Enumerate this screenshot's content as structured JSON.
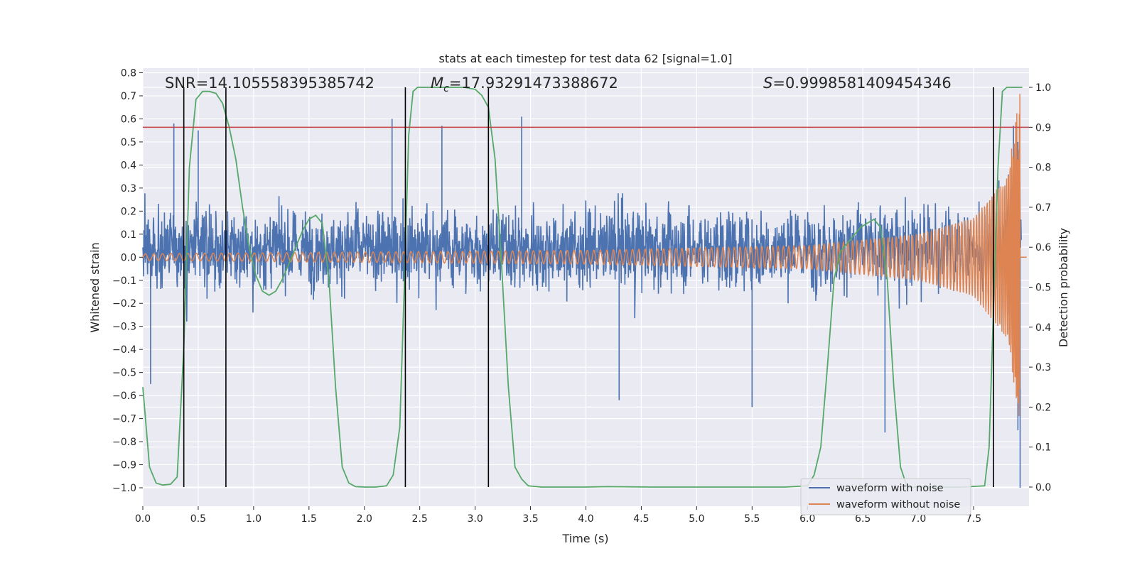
{
  "chart_data": {
    "type": "line",
    "title": "stats at each timestep for test data 62 [signal=1.0]",
    "xlabel": "Time (s)",
    "ylabel": "Whitened strain",
    "ylabel_right": "Detection probability",
    "xlim": [
      0,
      8.0
    ],
    "ylim": [
      -1.08,
      0.82
    ],
    "ylim_right": [
      -0.048,
      1.048
    ],
    "xticks": [
      "0.0",
      "0.5",
      "1.0",
      "1.5",
      "2.0",
      "2.5",
      "3.0",
      "3.5",
      "4.0",
      "4.5",
      "5.0",
      "5.5",
      "6.0",
      "6.5",
      "7.0",
      "7.5"
    ],
    "xtick_values": [
      0,
      0.5,
      1,
      1.5,
      2,
      2.5,
      3,
      3.5,
      4,
      4.5,
      5,
      5.5,
      6,
      6.5,
      7,
      7.5
    ],
    "yticks": [
      "0.8",
      "0.7",
      "0.6",
      "0.5",
      "0.4",
      "0.3",
      "0.2",
      "0.1",
      "0.0",
      "−0.1",
      "−0.2",
      "−0.3",
      "−0.4",
      "−0.5",
      "−0.6",
      "−0.7",
      "−0.8",
      "−0.9",
      "−1.0"
    ],
    "ytick_values": [
      0.8,
      0.7,
      0.6,
      0.5,
      0.4,
      0.3,
      0.2,
      0.1,
      0.0,
      -0.1,
      -0.2,
      -0.3,
      -0.4,
      -0.5,
      -0.6,
      -0.7,
      -0.8,
      -0.9,
      -1.0
    ],
    "yticks_right": [
      "1.0",
      "0.9",
      "0.8",
      "0.7",
      "0.6",
      "0.5",
      "0.4",
      "0.3",
      "0.2",
      "0.1",
      "0.0"
    ],
    "ytick_values_right": [
      1.0,
      0.9,
      0.8,
      0.7,
      0.6,
      0.5,
      0.4,
      0.3,
      0.2,
      0.1,
      0.0
    ],
    "grid": true,
    "legend_position": "bottom-right",
    "annotations": {
      "snr": "SNR=14.105558395385742",
      "mc_symbol": "M",
      "mc_subscript": "c",
      "mc_value": "=17.93291473388672",
      "s_symbol": "S",
      "s_value": "=0.9998581409454346"
    },
    "threshold_line": {
      "axis": "right",
      "value": 0.9,
      "color": "#c44e52"
    },
    "vertical_markers": [
      0.37,
      0.75,
      2.37,
      3.12,
      7.68
    ],
    "series": [
      {
        "name": "waveform with noise",
        "color": "#4c72b0",
        "axis": "left",
        "description": "noisy whitened strain, amplitude mostly within -0.4 to 0.45, sampled densely over 0 to 7.93 s",
        "x_range": [
          0,
          7.93
        ],
        "typical_range": [
          -0.42,
          0.45
        ],
        "extreme_values": [
          {
            "x": 0.07,
            "y": -0.55
          },
          {
            "x": 0.28,
            "y": 0.58
          },
          {
            "x": 0.5,
            "y": 0.55
          },
          {
            "x": 2.25,
            "y": 0.6
          },
          {
            "x": 2.7,
            "y": 0.57
          },
          {
            "x": 3.42,
            "y": 0.61
          },
          {
            "x": 4.3,
            "y": -0.62
          },
          {
            "x": 5.5,
            "y": -0.65
          },
          {
            "x": 6.7,
            "y": -0.76
          },
          {
            "x": 7.86,
            "y": 0.57
          },
          {
            "x": 7.9,
            "y": -0.75
          },
          {
            "x": 7.92,
            "y": -1.0
          }
        ]
      },
      {
        "name": "waveform without noise",
        "color": "#dd8452",
        "axis": "left",
        "description": "chirp waveform, amplitude growing from about 0.015 at t=0 to beyond 0.7 near merger at 7.92 s, then zero",
        "x_range": [
          0,
          8.0
        ],
        "merger_time": 7.92,
        "amplitude_points": [
          {
            "x": 0.0,
            "y": 0.015
          },
          {
            "x": 4.0,
            "y": 0.03
          },
          {
            "x": 6.0,
            "y": 0.05
          },
          {
            "x": 7.0,
            "y": 0.1
          },
          {
            "x": 7.5,
            "y": 0.17
          },
          {
            "x": 7.8,
            "y": 0.35
          },
          {
            "x": 7.92,
            "y": 0.72
          }
        ]
      },
      {
        "name": "detection probability",
        "color": "#55a868",
        "axis": "right",
        "x": [
          0.0,
          0.06,
          0.12,
          0.18,
          0.25,
          0.31,
          0.37,
          0.42,
          0.48,
          0.54,
          0.6,
          0.66,
          0.72,
          0.78,
          0.84,
          0.9,
          0.96,
          1.02,
          1.08,
          1.14,
          1.2,
          1.26,
          1.32,
          1.38,
          1.44,
          1.5,
          1.56,
          1.62,
          1.68,
          1.74,
          1.8,
          1.86,
          1.92,
          2.0,
          2.1,
          2.2,
          2.26,
          2.32,
          2.36,
          2.4,
          2.44,
          2.48,
          2.54,
          2.6,
          2.7,
          2.8,
          2.9,
          3.0,
          3.06,
          3.12,
          3.18,
          3.24,
          3.3,
          3.36,
          3.42,
          3.48,
          3.6,
          3.8,
          4.0,
          4.2,
          4.6,
          5.0,
          5.4,
          5.8,
          6.0,
          6.06,
          6.12,
          6.18,
          6.24,
          6.3,
          6.36,
          6.42,
          6.48,
          6.54,
          6.6,
          6.66,
          6.72,
          6.78,
          6.84,
          6.9,
          7.0,
          7.2,
          7.4,
          7.6,
          7.64,
          7.68,
          7.72,
          7.76,
          7.8,
          7.86,
          7.9,
          7.94
        ],
        "y": [
          0.25,
          0.05,
          0.01,
          0.005,
          0.007,
          0.025,
          0.35,
          0.8,
          0.97,
          0.99,
          0.99,
          0.985,
          0.96,
          0.9,
          0.82,
          0.7,
          0.6,
          0.53,
          0.49,
          0.48,
          0.49,
          0.52,
          0.56,
          0.6,
          0.64,
          0.67,
          0.68,
          0.66,
          0.52,
          0.25,
          0.05,
          0.01,
          0.001,
          0.0,
          0.0,
          0.003,
          0.03,
          0.15,
          0.5,
          0.88,
          0.99,
          1.0,
          1.0,
          1.0,
          1.0,
          1.0,
          1.0,
          0.995,
          0.98,
          0.95,
          0.82,
          0.55,
          0.25,
          0.05,
          0.02,
          0.003,
          0.0,
          0.0,
          0.0,
          0.001,
          0.0,
          0.0,
          0.0,
          0.0,
          0.003,
          0.03,
          0.1,
          0.3,
          0.52,
          0.59,
          0.61,
          0.63,
          0.65,
          0.66,
          0.67,
          0.65,
          0.52,
          0.25,
          0.05,
          0.0,
          0.0,
          0.0,
          0.0,
          0.003,
          0.1,
          0.45,
          0.8,
          0.99,
          1.0,
          1.0,
          1.0,
          1.0
        ]
      }
    ]
  }
}
